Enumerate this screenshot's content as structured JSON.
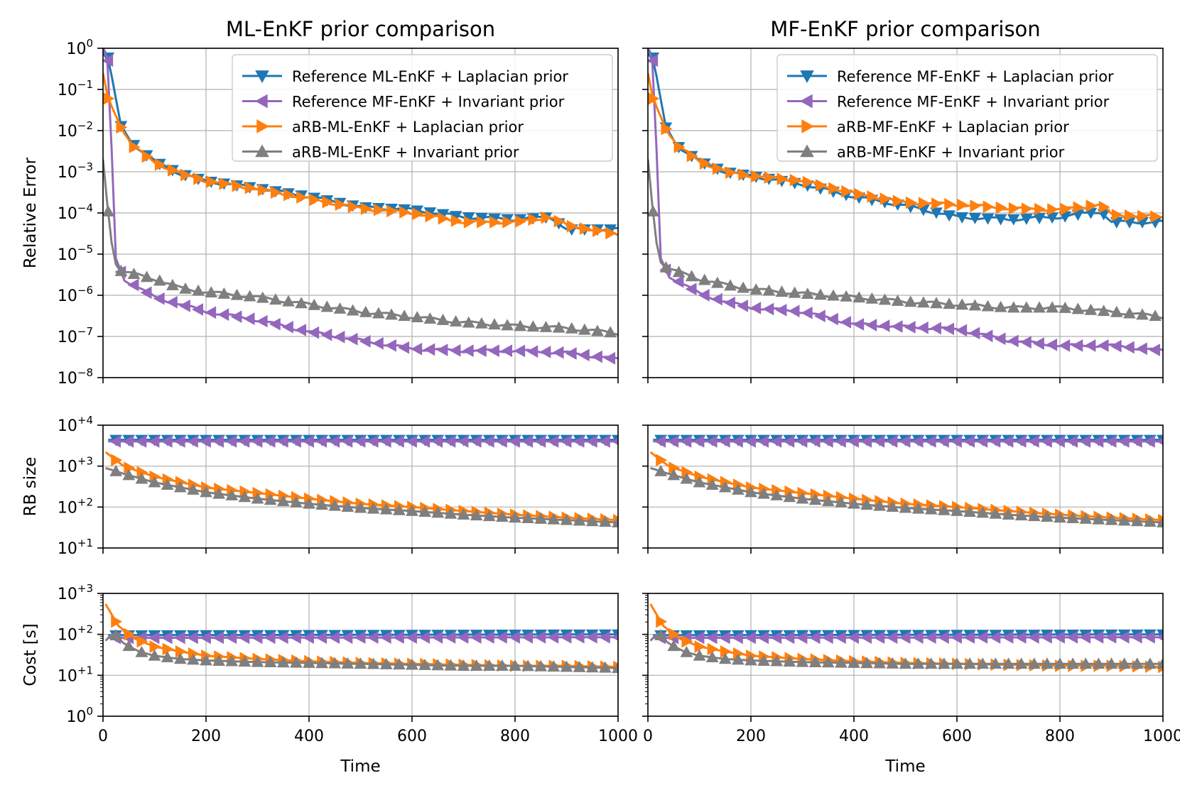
{
  "colors": {
    "ref_laplacian": "#1f77b4",
    "ref_invariant": "#9467bd",
    "arb_laplacian": "#ff7f0e",
    "arb_invariant": "#7f7f7f",
    "grid": "#b0b0b0"
  },
  "shared": {
    "xlabel": "Time",
    "x_ticks": [
      0,
      200,
      400,
      600,
      800,
      1000
    ],
    "xlim": [
      0,
      1000
    ],
    "ylabel_error": "Relative Error",
    "ylabel_rb": "RB size",
    "ylabel_cost": "Cost   [s]",
    "error_ticks": [
      {
        "e": "0",
        "label_base": "10",
        "label_exp": "0"
      },
      {
        "e": "-1",
        "label_base": "10",
        "label_exp": "−1"
      },
      {
        "e": "-2",
        "label_base": "10",
        "label_exp": "−2"
      },
      {
        "e": "-3",
        "label_base": "10",
        "label_exp": "−3"
      },
      {
        "e": "-4",
        "label_base": "10",
        "label_exp": "−4"
      },
      {
        "e": "-5",
        "label_base": "10",
        "label_exp": "−5"
      },
      {
        "e": "-6",
        "label_base": "10",
        "label_exp": "−6"
      },
      {
        "e": "-7",
        "label_base": "10",
        "label_exp": "−7"
      },
      {
        "e": "-8",
        "label_base": "10",
        "label_exp": "−8"
      }
    ],
    "rb_ticks": [
      {
        "e": "4",
        "label_base": "10",
        "label_exp": "+4"
      },
      {
        "e": "3",
        "label_base": "10",
        "label_exp": "+3"
      },
      {
        "e": "2",
        "label_base": "10",
        "label_exp": "+2"
      },
      {
        "e": "1",
        "label_base": "10",
        "label_exp": "+1"
      }
    ],
    "cost_ticks": [
      {
        "e": "3",
        "label_base": "10",
        "label_exp": "+3"
      },
      {
        "e": "2",
        "label_base": "10",
        "label_exp": "+2"
      },
      {
        "e": "1",
        "label_base": "10",
        "label_exp": "+1"
      },
      {
        "e": "0",
        "label_base": "10",
        "label_exp": "0"
      }
    ]
  },
  "chart_data": [
    {
      "type": "line",
      "title": "ML-EnKF prior comparison",
      "xlabel": "Time",
      "legend": [
        "Reference ML-EnKF + Laplacian prior",
        "Reference MF-EnKF + Invariant prior",
        "aRB-ML-EnKF + Laplacian prior",
        "aRB-ML-EnKF + Invariant prior"
      ],
      "legend_position": "top-right",
      "error": {
        "ylabel": "Relative Error",
        "yscale": "log",
        "ylim": [
          1e-08,
          1
        ],
        "series": [
          {
            "name": "Reference ML-EnKF + Laplacian prior",
            "x": [
              0,
              10,
              35,
              60,
              100,
              150,
              200,
              300,
              400,
              500,
              600,
              700,
              800,
              870,
              900,
              1000
            ],
            "values": [
              1.0,
              0.6,
              0.013,
              0.0045,
              0.0018,
              0.0009,
              0.0006,
              0.0004,
              0.00025,
              0.00014,
              0.00012,
              8e-05,
              7e-05,
              8e-05,
              4e-05,
              4e-05
            ]
          },
          {
            "name": "Reference MF-EnKF + Invariant prior",
            "x": [
              0,
              10,
              25,
              40,
              100,
              150,
              200,
              300,
              400,
              500,
              600,
              700,
              800,
              900,
              1000
            ],
            "values": [
              1.0,
              0.5,
              8e-06,
              2.5e-06,
              9e-07,
              6e-07,
              4e-07,
              2.5e-07,
              1.3e-07,
              8e-08,
              5e-08,
              4.5e-08,
              4.5e-08,
              4e-08,
              2.8e-08
            ]
          },
          {
            "name": "aRB-ML-EnKF + Laplacian prior",
            "x": [
              0,
              10,
              35,
              60,
              100,
              150,
              200,
              300,
              400,
              500,
              600,
              700,
              800,
              870,
              900,
              1000
            ],
            "values": [
              0.25,
              0.06,
              0.012,
              0.004,
              0.0017,
              0.0009,
              0.0006,
              0.00038,
              0.00022,
              0.00013,
              0.0001,
              6e-05,
              6e-05,
              8e-05,
              5e-05,
              3e-05
            ]
          },
          {
            "name": "aRB-ML-EnKF + Invariant prior",
            "x": [
              0,
              5,
              20,
              30,
              50,
              100,
              150,
              200,
              300,
              400,
              500,
              600,
              700,
              800,
              900,
              1000
            ],
            "values": [
              0.002,
              0.0004,
              8e-06,
              4e-06,
              3.5e-06,
              2.5e-06,
              1.5e-06,
              1.2e-06,
              9e-07,
              6e-07,
              4e-07,
              3e-07,
              2.2e-07,
              1.8e-07,
              1.6e-07,
              1.2e-07
            ]
          }
        ]
      },
      "rb_size": {
        "ylabel": "RB size",
        "yscale": "log",
        "ylim": [
          10,
          10000
        ],
        "series": [
          {
            "name": "Reference ML-EnKF + Laplacian prior",
            "x": [
              10,
              1000
            ],
            "values": [
              4400,
              4400
            ]
          },
          {
            "name": "Reference MF-EnKF + Invariant prior",
            "x": [
              10,
              1000
            ],
            "values": [
              4000,
              4000
            ]
          },
          {
            "name": "aRB-ML-EnKF + Laplacian prior",
            "x": [
              5,
              40,
              100,
              200,
              300,
              400,
              500,
              600,
              700,
              800,
              900,
              1000
            ],
            "values": [
              2200,
              1000,
              550,
              300,
              220,
              160,
              120,
              100,
              80,
              65,
              55,
              48
            ]
          },
          {
            "name": "aRB-ML-EnKF + Invariant prior",
            "x": [
              5,
              40,
              100,
              200,
              300,
              400,
              500,
              600,
              700,
              800,
              900,
              1000
            ],
            "values": [
              900,
              650,
              400,
              230,
              160,
              120,
              95,
              80,
              65,
              55,
              48,
              42
            ]
          }
        ]
      },
      "cost": {
        "ylabel": "Cost   [s]",
        "yscale": "log",
        "ylim": [
          1,
          1000
        ],
        "series": [
          {
            "name": "Reference ML-EnKF + Laplacian prior",
            "x": [
              10,
              1000
            ],
            "values": [
              95,
              100
            ]
          },
          {
            "name": "Reference MF-EnKF + Invariant prior",
            "x": [
              10,
              1000
            ],
            "values": [
              82,
              85
            ]
          },
          {
            "name": "aRB-ML-EnKF + Laplacian prior",
            "x": [
              5,
              30,
              60,
              100,
              150,
              200,
              300,
              400,
              500,
              600,
              700,
              800,
              900,
              1000
            ],
            "values": [
              550,
              160,
              80,
              50,
              38,
              30,
              25,
              22,
              20,
              19,
              18,
              17,
              17,
              16
            ]
          },
          {
            "name": "aRB-ML-EnKF + Invariant prior",
            "x": [
              5,
              20,
              40,
              70,
              100,
              150,
              200,
              300,
              400,
              500,
              600,
              700,
              800,
              900,
              1000
            ],
            "values": [
              70,
              110,
              60,
              38,
              30,
              25,
              23,
              21,
              20,
              19,
              18,
              17,
              17,
              16,
              15
            ]
          }
        ]
      }
    },
    {
      "type": "line",
      "title": "MF-EnKF prior comparison",
      "xlabel": "Time",
      "legend": [
        "Reference MF-EnKF + Laplacian prior",
        "Reference MF-EnKF + Invariant prior",
        "aRB-MF-EnKF + Laplacian prior",
        "aRB-MF-EnKF + Invariant prior"
      ],
      "legend_position": "top-right",
      "error": {
        "ylabel": "Relative Error",
        "yscale": "log",
        "ylim": [
          1e-08,
          1
        ],
        "series": [
          {
            "name": "Reference MF-EnKF + Laplacian prior",
            "x": [
              0,
              10,
              35,
              60,
              100,
              150,
              200,
              300,
              400,
              500,
              600,
              700,
              800,
              880,
              900,
              1000
            ],
            "values": [
              1.0,
              0.6,
              0.012,
              0.004,
              0.0018,
              0.001,
              0.0008,
              0.0005,
              0.00025,
              0.00015,
              8e-05,
              7e-05,
              8e-05,
              0.00011,
              6e-05,
              6e-05
            ]
          },
          {
            "name": "Reference MF-EnKF + Invariant prior",
            "x": [
              0,
              10,
              25,
              40,
              100,
              150,
              200,
              300,
              400,
              500,
              600,
              700,
              800,
              900,
              1000
            ],
            "values": [
              1.0,
              0.5,
              8e-06,
              3e-06,
              1.1e-06,
              7e-07,
              5e-07,
              4e-07,
              2e-07,
              1.7e-07,
              1.5e-07,
              8e-08,
              6e-08,
              6e-08,
              4.5e-08
            ]
          },
          {
            "name": "aRB-MF-EnKF + Laplacian prior",
            "x": [
              0,
              10,
              35,
              60,
              100,
              150,
              200,
              300,
              400,
              500,
              600,
              700,
              800,
              880,
              900,
              1000
            ],
            "values": [
              0.25,
              0.06,
              0.011,
              0.004,
              0.0018,
              0.001,
              0.0008,
              0.0006,
              0.0003,
              0.00018,
              0.00016,
              0.00013,
              0.00012,
              0.00016,
              9e-05,
              8e-05
            ]
          },
          {
            "name": "aRB-MF-EnKF + Invariant prior",
            "x": [
              0,
              5,
              20,
              30,
              50,
              100,
              150,
              200,
              300,
              400,
              500,
              600,
              700,
              800,
              900,
              1000
            ],
            "values": [
              0.002,
              0.0004,
              8e-06,
              5e-06,
              4e-06,
              2.5e-06,
              1.8e-06,
              1.4e-06,
              1.1e-06,
              9e-07,
              7e-07,
              6e-07,
              5e-07,
              5e-07,
              4e-07,
              3e-07
            ]
          }
        ]
      },
      "rb_size": {
        "ylabel": "RB size",
        "yscale": "log",
        "ylim": [
          10,
          10000
        ],
        "series": [
          {
            "name": "Reference MF-EnKF + Laplacian prior",
            "x": [
              10,
              1000
            ],
            "values": [
              4400,
              4400
            ]
          },
          {
            "name": "Reference MF-EnKF + Invariant prior",
            "x": [
              10,
              1000
            ],
            "values": [
              4000,
              4000
            ]
          },
          {
            "name": "aRB-MF-EnKF + Laplacian prior",
            "x": [
              5,
              40,
              100,
              200,
              300,
              400,
              500,
              600,
              700,
              800,
              900,
              1000
            ],
            "values": [
              2200,
              1000,
              550,
              300,
              220,
              160,
              120,
              100,
              80,
              65,
              55,
              48
            ]
          },
          {
            "name": "aRB-MF-EnKF + Invariant prior",
            "x": [
              5,
              40,
              100,
              200,
              300,
              400,
              500,
              600,
              700,
              800,
              900,
              1000
            ],
            "values": [
              900,
              650,
              400,
              230,
              160,
              120,
              95,
              80,
              65,
              55,
              48,
              42
            ]
          }
        ]
      },
      "cost": {
        "ylabel": "Cost   [s]",
        "yscale": "log",
        "ylim": [
          1,
          1000
        ],
        "series": [
          {
            "name": "Reference MF-EnKF + Laplacian prior",
            "x": [
              10,
              1000
            ],
            "values": [
              95,
              100
            ]
          },
          {
            "name": "Reference MF-EnKF + Invariant prior",
            "x": [
              10,
              1000
            ],
            "values": [
              82,
              85
            ]
          },
          {
            "name": "aRB-MF-EnKF + Laplacian prior",
            "x": [
              5,
              30,
              60,
              100,
              150,
              200,
              300,
              400,
              500,
              600,
              700,
              800,
              900,
              1000
            ],
            "values": [
              550,
              160,
              80,
              50,
              38,
              30,
              25,
              22,
              20,
              19,
              18,
              17,
              17,
              16
            ]
          },
          {
            "name": "aRB-MF-EnKF + Invariant prior",
            "x": [
              5,
              20,
              40,
              70,
              100,
              150,
              200,
              300,
              400,
              500,
              600,
              700,
              800,
              900,
              1000
            ],
            "values": [
              70,
              110,
              60,
              38,
              30,
              25,
              23,
              21,
              20,
              19,
              19,
              19,
              19,
              19,
              19
            ]
          }
        ]
      }
    }
  ]
}
